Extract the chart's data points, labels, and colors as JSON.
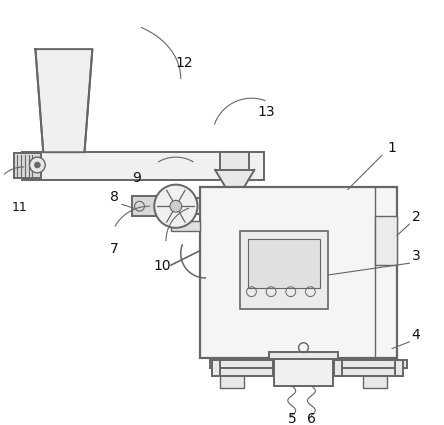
{
  "bg_color": "#ffffff",
  "line_color": "#666666",
  "line_width": 1.4,
  "label_color": "#111111",
  "label_fontsize": 10,
  "leader_color": "#666666"
}
